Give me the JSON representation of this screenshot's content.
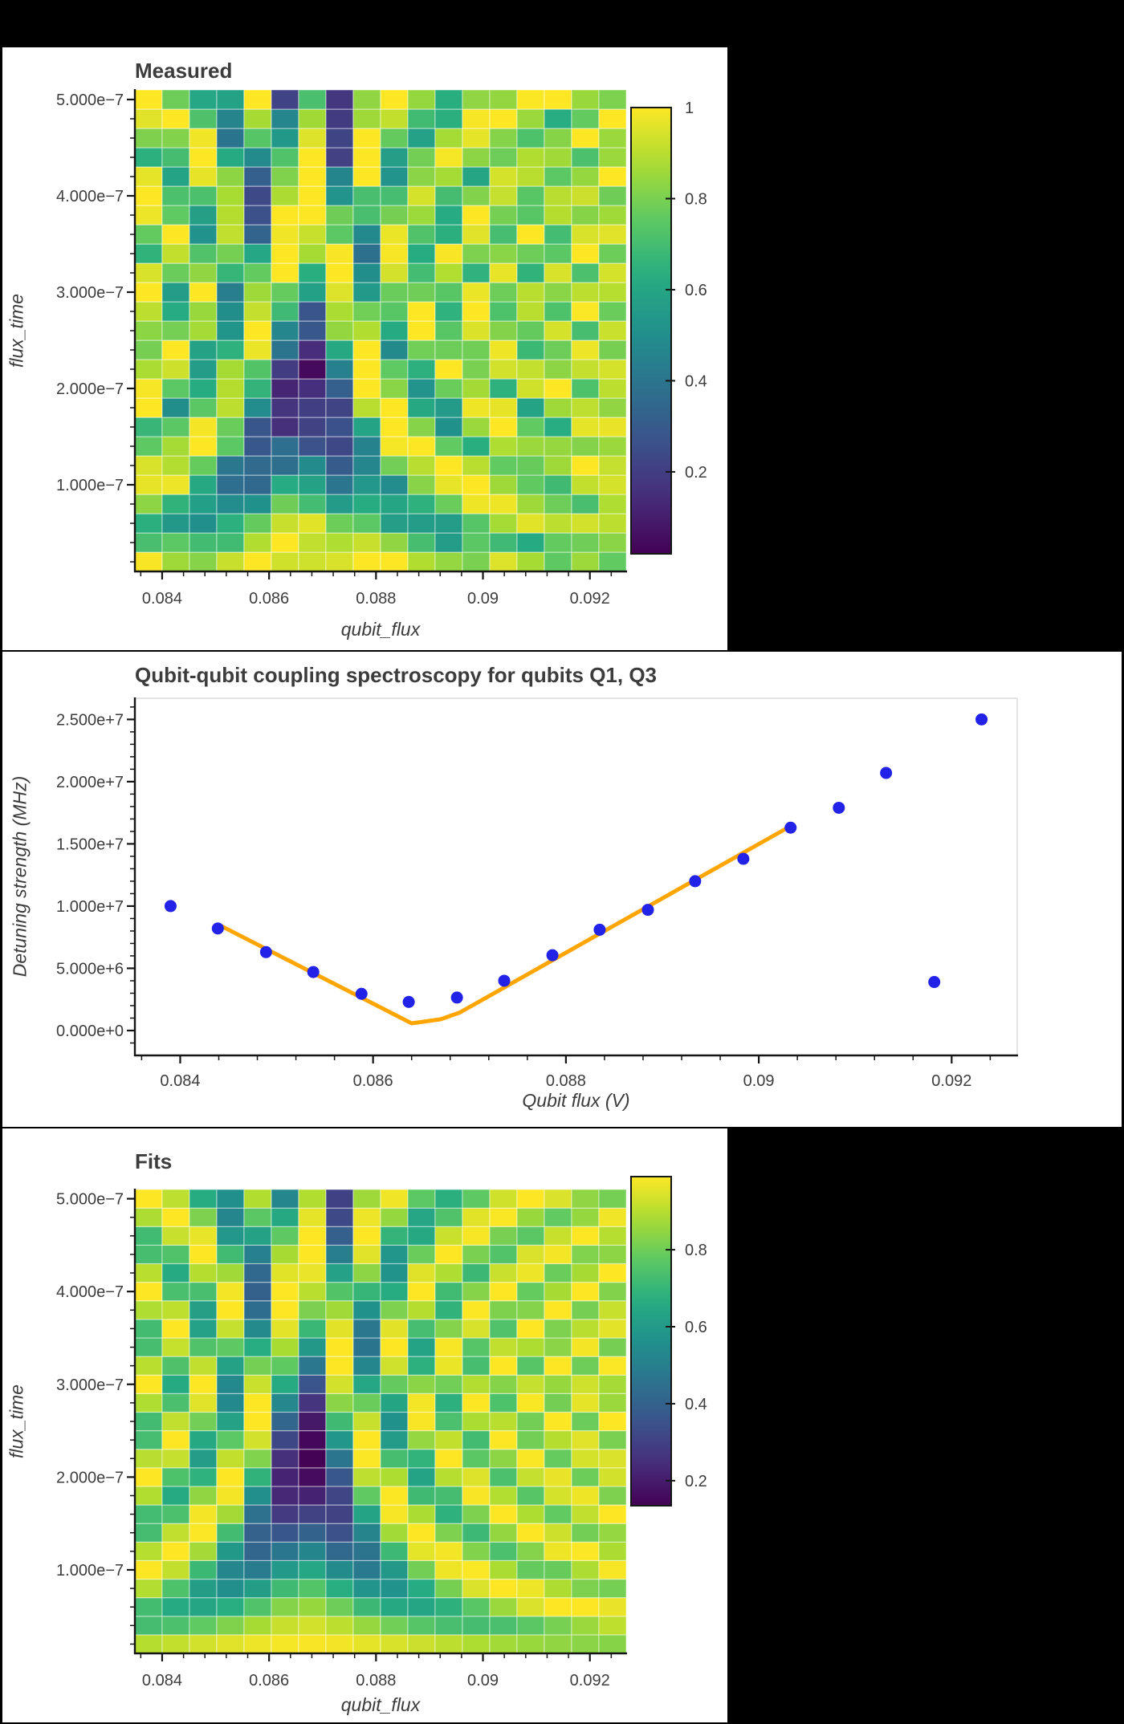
{
  "page": {
    "background": "#000000",
    "panel_background": "#ffffff"
  },
  "colors": {
    "text": "#3c3c3c",
    "axis": "#151515",
    "frame_gray": "#e3e3e3",
    "cell_gap": "rgba(255,255,255,0.45)",
    "point_blue": "#2222e8",
    "fit_orange": "#ffa500",
    "viridis": [
      "#440154",
      "#472d7b",
      "#3b528b",
      "#2c728e",
      "#21918c",
      "#27ad81",
      "#5ec962",
      "#aadc32",
      "#fde725"
    ]
  },
  "panels": {
    "measured": {
      "title": "Measured",
      "xlabel": "qubit_flux",
      "ylabel": "flux_time"
    },
    "spectroscopy": {
      "title": "Qubit-qubit coupling spectroscopy for qubits Q1, Q3",
      "xlabel": "Qubit flux (V)",
      "ylabel": "Detuning strength (MHz)"
    },
    "fits": {
      "title": "Fits",
      "xlabel": "qubit_flux",
      "ylabel": "flux_time"
    }
  },
  "chart_data": [
    {
      "id": "measured",
      "type": "heatmap",
      "title": "Measured",
      "xlabel": "qubit_flux",
      "ylabel": "flux_time",
      "x": [
        0.08375,
        0.08426,
        0.08477,
        0.08528,
        0.08579,
        0.0863,
        0.08681,
        0.08732,
        0.08783,
        0.08834,
        0.08885,
        0.08936,
        0.08987,
        0.09038,
        0.09089,
        0.0914,
        0.09191,
        0.09242
      ],
      "y": [
        2e-08,
        4e-08,
        6e-08,
        8e-08,
        1e-07,
        1.2e-07,
        1.4e-07,
        1.6e-07,
        1.8e-07,
        2e-07,
        2.2e-07,
        2.4e-07,
        2.6e-07,
        2.8e-07,
        3e-07,
        3.2e-07,
        3.4e-07,
        3.6e-07,
        3.8e-07,
        4e-07,
        4.2e-07,
        4.4e-07,
        4.6e-07,
        4.8e-07,
        5e-07
      ],
      "x_range": [
        0.08349,
        0.09268
      ],
      "y_range": [
        1e-08,
        5.1e-07
      ],
      "z_model": {
        "type": "rabi_chevron",
        "x0": 0.0867,
        "slope_hz_per_V": 3300000000.0,
        "g_hz": 2400000.0,
        "amp": 0.95,
        "amp_power": 0.7,
        "noise": 0.1,
        "col_noise": 0.05,
        "seed": 3
      },
      "zmin": 0.02,
      "zmax": 1.0,
      "xticks": [
        {
          "v": 0.084,
          "label": "0.084"
        },
        {
          "v": 0.086,
          "label": "0.086"
        },
        {
          "v": 0.088,
          "label": "0.088"
        },
        {
          "v": 0.09,
          "label": "0.09"
        },
        {
          "v": 0.092,
          "label": "0.092"
        }
      ],
      "yticks": [
        {
          "v": 5e-07,
          "label": "5.000e−7"
        },
        {
          "v": 4e-07,
          "label": "4.000e−7"
        },
        {
          "v": 3e-07,
          "label": "3.000e−7"
        },
        {
          "v": 2e-07,
          "label": "2.000e−7"
        },
        {
          "v": 1e-07,
          "label": "1.000e−7"
        }
      ],
      "colorbar": {
        "ticks": [
          {
            "v": 1.0,
            "label": "1",
            "mark": false
          },
          {
            "v": 0.8,
            "label": "0.8",
            "mark": true
          },
          {
            "v": 0.6,
            "label": "0.6",
            "mark": true
          },
          {
            "v": 0.4,
            "label": "0.4",
            "mark": true
          },
          {
            "v": 0.2,
            "label": "0.2",
            "mark": true
          }
        ]
      }
    },
    {
      "id": "spectroscopy",
      "type": "scatter",
      "title": "Qubit-qubit coupling spectroscopy for qubits Q1, Q3",
      "xlabel": "Qubit flux (V)",
      "ylabel": "Detuning strength (MHz)",
      "x": [
        0.0839,
        0.08439,
        0.08489,
        0.08538,
        0.08588,
        0.08637,
        0.08687,
        0.08736,
        0.08786,
        0.08835,
        0.08885,
        0.08934,
        0.08984,
        0.09033,
        0.09083,
        0.09132,
        0.09182,
        0.09231
      ],
      "y": [
        10000000.0,
        8200000.0,
        6300000.0,
        4700000.0,
        2950000.0,
        2300000.0,
        2650000.0,
        4000000.0,
        6050000.0,
        8100000.0,
        9700000.0,
        12000000.0,
        13800000.0,
        16300000.0,
        17900000.0,
        20700000.0,
        3900000.0,
        25000000.0
      ],
      "fit_line": {
        "x": [
          0.0844,
          0.0864,
          0.0867,
          0.0869,
          0.0903
        ],
        "y": [
          8500000.0,
          580000.0,
          900000.0,
          1450000.0,
          16300000.0
        ]
      },
      "x_range": [
        0.08353,
        0.09268
      ],
      "y_range": [
        -2000000.0,
        26700000.0
      ],
      "xticks": [
        {
          "v": 0.084,
          "label": "0.084"
        },
        {
          "v": 0.086,
          "label": "0.086"
        },
        {
          "v": 0.088,
          "label": "0.088"
        },
        {
          "v": 0.09,
          "label": "0.09"
        },
        {
          "v": 0.092,
          "label": "0.092"
        }
      ],
      "yticks": [
        {
          "v": 0,
          "label": "0.000e+0"
        },
        {
          "v": 5000000.0,
          "label": "5.000e+6"
        },
        {
          "v": 10000000.0,
          "label": "1.000e+7"
        },
        {
          "v": 15000000.0,
          "label": "1.500e+7"
        },
        {
          "v": 20000000.0,
          "label": "2.000e+7"
        },
        {
          "v": 25000000.0,
          "label": "2.500e+7"
        }
      ]
    },
    {
      "id": "fits",
      "type": "heatmap",
      "title": "Fits",
      "xlabel": "qubit_flux",
      "ylabel": "flux_time",
      "x": [
        0.08375,
        0.08426,
        0.08477,
        0.08528,
        0.08579,
        0.0863,
        0.08681,
        0.08732,
        0.08783,
        0.08834,
        0.08885,
        0.08936,
        0.08987,
        0.09038,
        0.09089,
        0.0914,
        0.09191,
        0.09242
      ],
      "y": [
        2e-08,
        4e-08,
        6e-08,
        8e-08,
        1e-07,
        1.2e-07,
        1.4e-07,
        1.6e-07,
        1.8e-07,
        2e-07,
        2.2e-07,
        2.4e-07,
        2.6e-07,
        2.8e-07,
        3e-07,
        3.2e-07,
        3.4e-07,
        3.6e-07,
        3.8e-07,
        4e-07,
        4.2e-07,
        4.4e-07,
        4.6e-07,
        4.8e-07,
        5e-07
      ],
      "x_range": [
        0.08349,
        0.09268
      ],
      "y_range": [
        1e-08,
        5.1e-07
      ],
      "z_model": {
        "type": "rabi_chevron",
        "x0": 0.0867,
        "slope_hz_per_V": 3300000000.0,
        "g_hz": 2200000.0,
        "amp": 0.87,
        "amp_power": 0.7,
        "noise": 0,
        "col_noise": 0,
        "seed": 1
      },
      "zmin": 0.135,
      "zmax": 0.99,
      "xticks": [
        {
          "v": 0.084,
          "label": "0.084"
        },
        {
          "v": 0.086,
          "label": "0.086"
        },
        {
          "v": 0.088,
          "label": "0.088"
        },
        {
          "v": 0.09,
          "label": "0.09"
        },
        {
          "v": 0.092,
          "label": "0.092"
        }
      ],
      "yticks": [
        {
          "v": 5e-07,
          "label": "5.000e−7"
        },
        {
          "v": 4e-07,
          "label": "4.000e−7"
        },
        {
          "v": 3e-07,
          "label": "3.000e−7"
        },
        {
          "v": 2e-07,
          "label": "2.000e−7"
        },
        {
          "v": 1e-07,
          "label": "1.000e−7"
        }
      ],
      "colorbar": {
        "ticks": [
          {
            "v": 0.8,
            "label": "0.8",
            "mark": true
          },
          {
            "v": 0.6,
            "label": "0.6",
            "mark": true
          },
          {
            "v": 0.4,
            "label": "0.4",
            "mark": true
          },
          {
            "v": 0.2,
            "label": "0.2",
            "mark": true
          }
        ]
      }
    }
  ]
}
